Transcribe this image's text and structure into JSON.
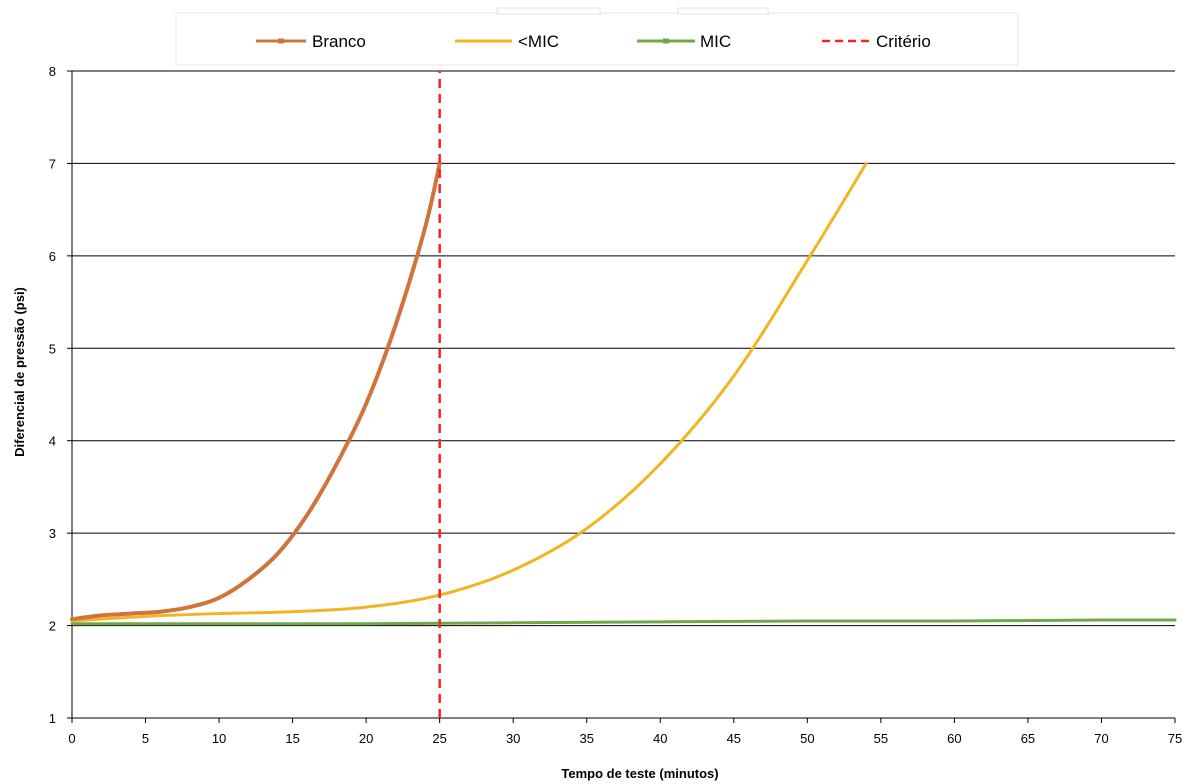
{
  "chart_data": {
    "type": "line",
    "title": "",
    "xlabel": "Tempo de teste (minutos)",
    "ylabel": "Diferencial de pressão (psi)",
    "xlim": [
      0,
      75
    ],
    "ylim": [
      1,
      8
    ],
    "x_ticks": [
      "0",
      "5",
      "10",
      "15",
      "20",
      "25",
      "30",
      "35",
      "40",
      "45",
      "50",
      "55",
      "60",
      "65",
      "70",
      "75"
    ],
    "y_ticks": [
      "1",
      "2",
      "3",
      "4",
      "5",
      "6",
      "7",
      "8"
    ],
    "grid": "horizontal",
    "legend_position": "top",
    "series": [
      {
        "name": "Branco",
        "color": "#d0743c",
        "marker": "dash",
        "x": [
          0,
          2,
          4,
          6,
          8,
          10,
          12,
          14,
          16,
          18,
          20,
          22,
          24,
          25
        ],
        "y": [
          2.07,
          2.11,
          2.13,
          2.15,
          2.2,
          2.3,
          2.5,
          2.78,
          3.2,
          3.75,
          4.4,
          5.25,
          6.3,
          7.0
        ]
      },
      {
        "name": "<MIC",
        "color": "#f0b520",
        "marker": "none",
        "x": [
          0,
          5,
          10,
          15,
          20,
          25,
          30,
          35,
          40,
          45,
          50,
          54
        ],
        "y": [
          2.05,
          2.1,
          2.13,
          2.15,
          2.2,
          2.33,
          2.6,
          3.05,
          3.75,
          4.7,
          5.95,
          7.0
        ]
      },
      {
        "name": "MIC",
        "color": "#6ea84a",
        "marker": "dash",
        "x": [
          0,
          10,
          20,
          30,
          40,
          50,
          60,
          70,
          75
        ],
        "y": [
          2.02,
          2.02,
          2.02,
          2.03,
          2.04,
          2.05,
          2.05,
          2.06,
          2.06
        ]
      },
      {
        "name": "Critério",
        "color": "#ff2020",
        "style": "dashed",
        "x": [
          25,
          25
        ],
        "y": [
          1,
          8
        ]
      }
    ]
  }
}
